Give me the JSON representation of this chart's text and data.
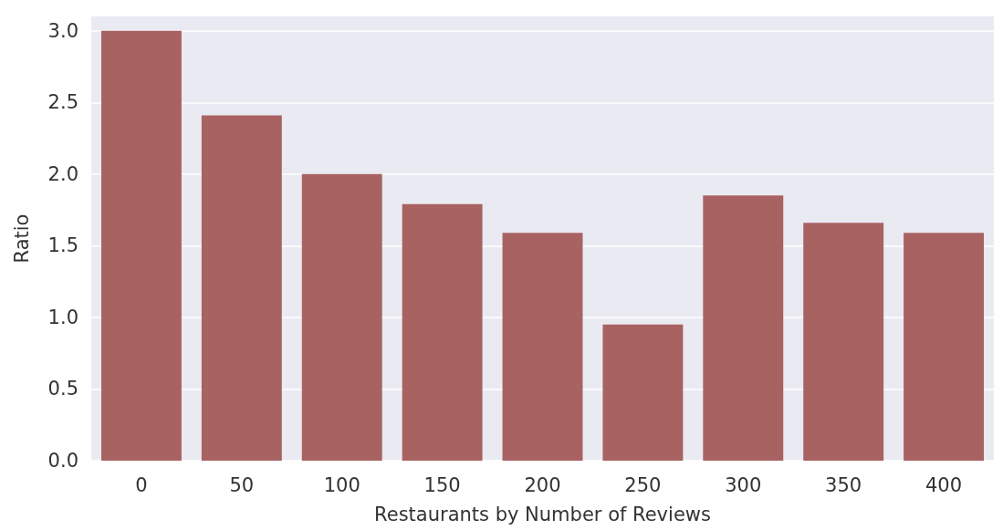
{
  "chart_data": {
    "type": "bar",
    "xlabel": "Restaurants by Number of Reviews",
    "ylabel": "Ratio",
    "categories": [
      "0",
      "50",
      "100",
      "150",
      "200",
      "250",
      "300",
      "350",
      "400"
    ],
    "values": [
      3.0,
      2.41,
      2.0,
      1.79,
      1.59,
      0.95,
      1.85,
      1.66,
      1.59
    ],
    "color": "#a86262",
    "ylim": [
      0,
      3.1
    ],
    "yticks": [
      {
        "value": 0,
        "label": "0.0"
      },
      0.5,
      {
        "value": 1,
        "label": "1.0"
      },
      1.5,
      {
        "value": 2,
        "label": "2.0"
      },
      2.5,
      {
        "value": 3,
        "label": "3.0"
      }
    ],
    "grid": "y"
  }
}
